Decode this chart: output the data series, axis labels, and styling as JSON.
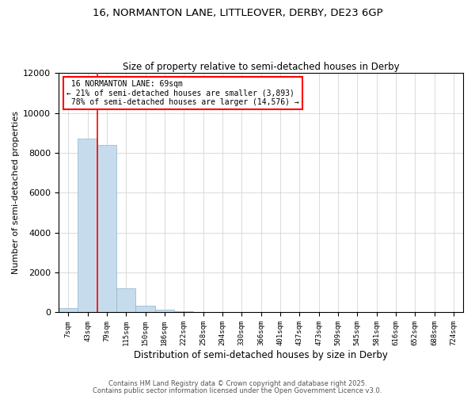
{
  "title_line1": "16, NORMANTON LANE, LITTLEOVER, DERBY, DE23 6GP",
  "title_line2": "Size of property relative to semi-detached houses in Derby",
  "xlabel": "Distribution of semi-detached houses by size in Derby",
  "ylabel": "Number of semi-detached properties",
  "categories": [
    "7sqm",
    "43sqm",
    "79sqm",
    "115sqm",
    "150sqm",
    "186sqm",
    "222sqm",
    "258sqm",
    "294sqm",
    "330sqm",
    "366sqm",
    "401sqm",
    "437sqm",
    "473sqm",
    "509sqm",
    "545sqm",
    "581sqm",
    "616sqm",
    "652sqm",
    "688sqm",
    "724sqm"
  ],
  "values": [
    200,
    8700,
    8400,
    1200,
    330,
    120,
    70,
    0,
    0,
    0,
    0,
    0,
    0,
    0,
    0,
    0,
    0,
    0,
    0,
    0,
    0
  ],
  "bar_color": "#c6dcec",
  "bar_edge_color": "#8ab4cc",
  "property_line_index": 1.5,
  "property_size": "69sqm",
  "pct_smaller": 21,
  "count_smaller": 3893,
  "pct_larger": 78,
  "count_larger": 14576,
  "ylim": [
    0,
    12000
  ],
  "yticks": [
    0,
    2000,
    4000,
    6000,
    8000,
    10000,
    12000
  ],
  "footnote1": "Contains HM Land Registry data © Crown copyright and database right 2025.",
  "footnote2": "Contains public sector information licensed under the Open Government Licence v3.0.",
  "background_color": "#ffffff",
  "grid_color": "#cccccc"
}
